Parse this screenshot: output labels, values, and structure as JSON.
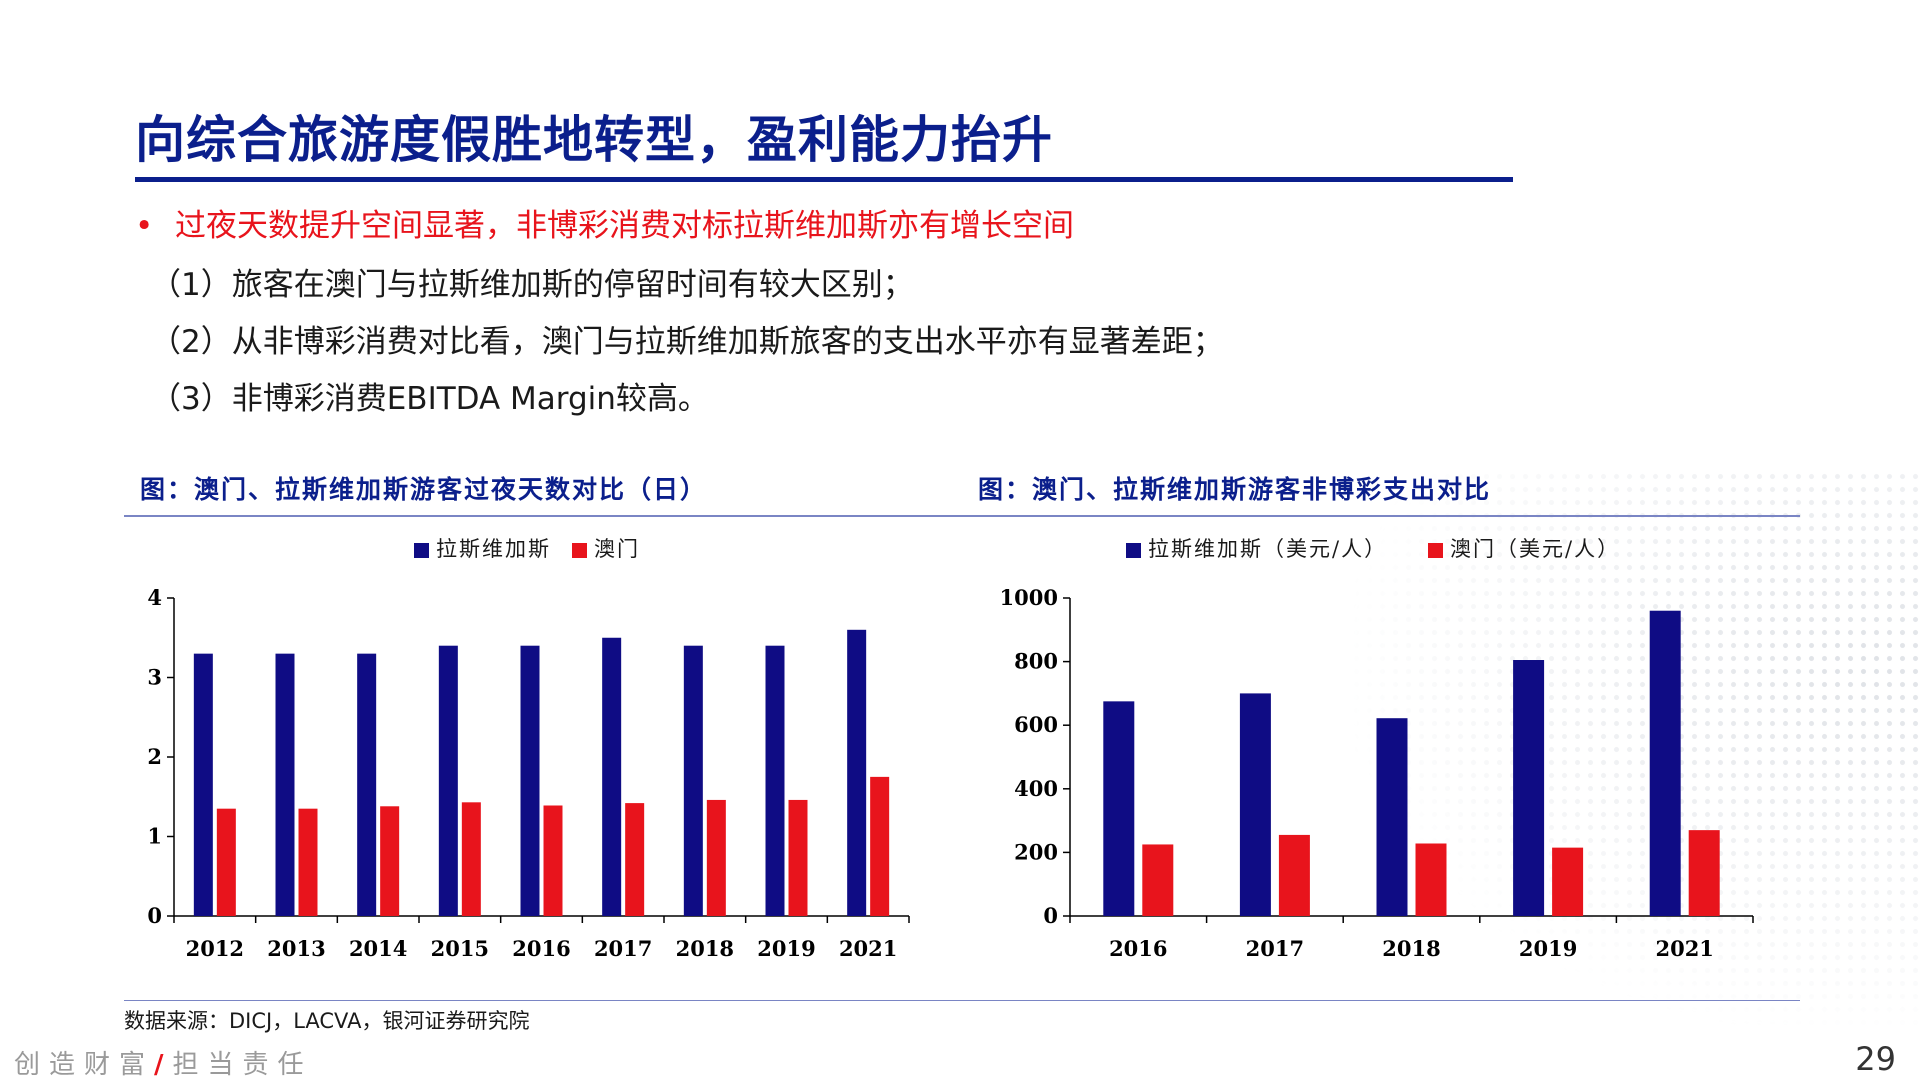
{
  "header": {
    "title": "向综合旅游度假胜地转型，盈利能力抬升"
  },
  "content": {
    "bullet_marker": "•",
    "bullet": "过夜天数提升空间显著，非博彩消费对标拉斯维加斯亦有增长空间",
    "points": [
      "（1）旅客在澳门与拉斯维加斯的停留时间有较大区别；",
      "（2）从非博彩消费对比看，澳门与拉斯维加斯旅客的支出水平亦有显著差距；",
      "（3）非博彩消费EBITDA Margin较高。"
    ]
  },
  "chart_data": [
    {
      "type": "bar",
      "title": "图：澳门、拉斯维加斯游客过夜天数对比（日）",
      "categories": [
        "2012",
        "2013",
        "2014",
        "2015",
        "2016",
        "2017",
        "2018",
        "2019",
        "2021"
      ],
      "series": [
        {
          "name": "拉斯维加斯",
          "color": "#0f0c84",
          "values": [
            3.3,
            3.3,
            3.3,
            3.4,
            3.4,
            3.5,
            3.4,
            3.4,
            3.6
          ]
        },
        {
          "name": "澳门",
          "color": "#e8141c",
          "values": [
            1.35,
            1.35,
            1.38,
            1.43,
            1.39,
            1.42,
            1.46,
            1.46,
            1.75
          ]
        }
      ],
      "xlabel": "",
      "ylabel": "",
      "ylim": [
        0,
        4
      ],
      "yticks": [
        0,
        1,
        2,
        3,
        4
      ],
      "legend_position": "top-center",
      "grid": false
    },
    {
      "type": "bar",
      "title": "图：澳门、拉斯维加斯游客非博彩支出对比",
      "categories": [
        "2016",
        "2017",
        "2018",
        "2019",
        "2021"
      ],
      "series": [
        {
          "name": "拉斯维加斯（美元/人）",
          "color": "#0f0c84",
          "values": [
            675,
            700,
            622,
            805,
            960
          ]
        },
        {
          "name": "澳门（美元/人）",
          "color": "#e8141c",
          "values": [
            225,
            255,
            228,
            215,
            270
          ]
        }
      ],
      "xlabel": "",
      "ylabel": "",
      "ylim": [
        0,
        1000
      ],
      "yticks": [
        0,
        200,
        400,
        600,
        800,
        1000
      ],
      "legend_position": "top-center",
      "grid": false
    }
  ],
  "footer": {
    "source": "数据来源：DICJ，LACVA，银河证券研究院",
    "slogan_left": "创造财富",
    "slogan_sep": "/",
    "slogan_right": "担当责任",
    "page_number": "29"
  }
}
